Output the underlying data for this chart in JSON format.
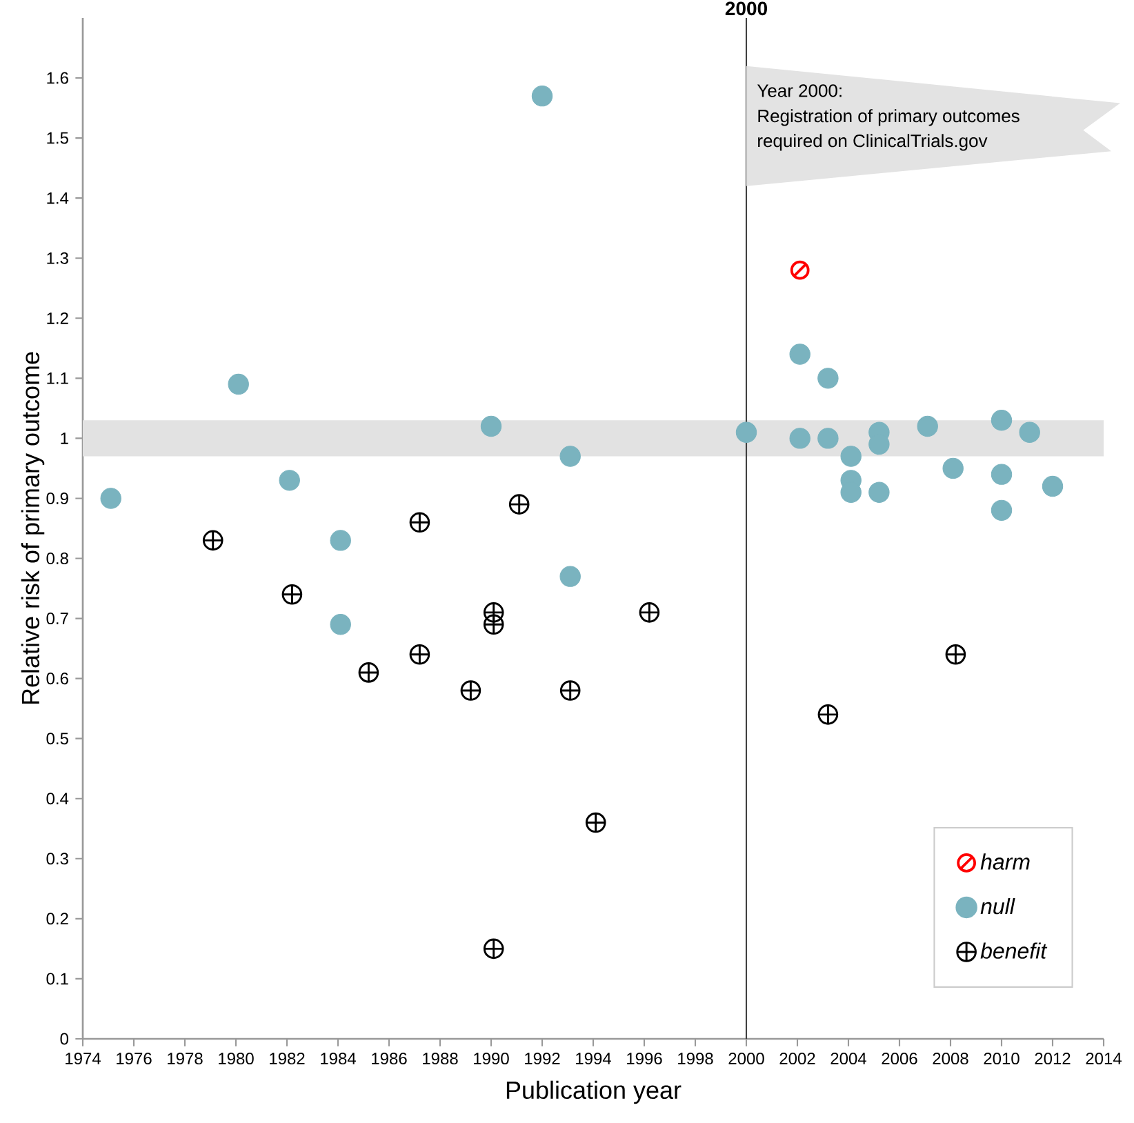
{
  "chart_data": {
    "type": "scatter",
    "xlabel": "Publication year",
    "ylabel": "Relative risk of primary outcome",
    "xlim": [
      1974,
      2014
    ],
    "xticks": [
      1974,
      1976,
      1978,
      1980,
      1982,
      1984,
      1986,
      1988,
      1990,
      1992,
      1994,
      1996,
      1998,
      2000,
      2002,
      2004,
      2006,
      2008,
      2010,
      2012,
      2014
    ],
    "ylim": [
      0,
      1.7
    ],
    "yticks": [
      0,
      0.1,
      0.2,
      0.3,
      0.4,
      0.5,
      0.6,
      0.7,
      0.8,
      0.9,
      1,
      1.1,
      1.2,
      1.3,
      1.4,
      1.5,
      1.6
    ],
    "series": [
      {
        "name": "harm",
        "color": "#ff0000",
        "x": [
          2002.1
        ],
        "values": [
          1.28
        ]
      },
      {
        "name": "null",
        "color": "#7ab3bf",
        "marker": "circle",
        "x": [
          1975.1,
          1980.1,
          1982.1,
          1984.1,
          1984.1,
          1990,
          1992,
          1993.1,
          1993.1,
          2000,
          2002.1,
          2003.2,
          2002.1,
          2003.2,
          2004.1,
          2004.1,
          2004.1,
          2005.2,
          2005.2,
          2005.2,
          2007.1,
          2008.1,
          2010,
          2010,
          2010,
          2011.1,
          2012
        ],
        "values": [
          0.9,
          1.09,
          0.93,
          0.83,
          0.69,
          1.02,
          1.57,
          0.97,
          0.77,
          1.01,
          1.14,
          1.1,
          1,
          1,
          0.97,
          0.93,
          0.91,
          1.01,
          0.99,
          0.91,
          1.02,
          0.95,
          1.03,
          0.94,
          0.88,
          1.01,
          0.92
        ]
      },
      {
        "name": "benefit",
        "color": "#000000",
        "marker": "cross",
        "x": [
          1979.1,
          1982.2,
          1985.2,
          1987.2,
          1987.2,
          1989.2,
          1990.1,
          1990.1,
          1990.1,
          1991.1,
          1993.1,
          1994.1,
          1996.2,
          2003.2,
          2008.2
        ],
        "values": [
          0.83,
          0.74,
          0.61,
          0.64,
          0.86,
          0.58,
          0.71,
          0.69,
          0.15,
          0.89,
          0.58,
          0.36,
          0.71,
          0.54,
          0.64
        ]
      }
    ],
    "ref_lines": [
      {
        "axis": "x",
        "value": 2000,
        "label": "2000",
        "color": "#404040"
      }
    ],
    "bands": [
      {
        "axis": "y",
        "from": 0.97,
        "to": 1.03,
        "color": "#e2e2e2"
      }
    ],
    "annotations": [
      "Year 2000:",
      "Registration of primary outcomes",
      "required on ClinicalTrials.gov"
    ],
    "legend": "bottom right",
    "grid": false
  }
}
